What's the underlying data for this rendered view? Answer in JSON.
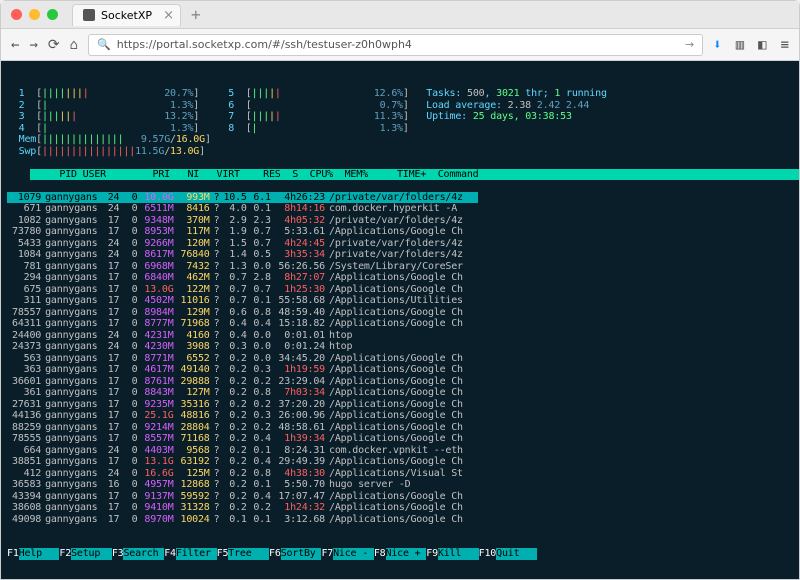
{
  "browser": {
    "tab_title": "SocketXP",
    "url": "https://portal.socketxp.com/#/ssh/testuser-z0h0wph4"
  },
  "colors": {
    "terminal_bg": "#0a1e2a",
    "header_bg": "#00d7af",
    "selected_bg": "#00afaf",
    "cyan": "#5fd7ff",
    "magenta": "#d75fff",
    "yellow": "#ffd75f",
    "red": "#ff5f5f",
    "green": "#5fff87"
  },
  "meters": {
    "cpus": [
      {
        "n": "1",
        "bar": "||||||||",
        "pct": "20.7%"
      },
      {
        "n": "2",
        "bar": "|",
        "pct": "1.3%"
      },
      {
        "n": "3",
        "bar": "||||||",
        "pct": "13.2%"
      },
      {
        "n": "4",
        "bar": "|",
        "pct": "1.3%"
      },
      {
        "n": "5",
        "bar": "|||||",
        "pct": "12.6%"
      },
      {
        "n": "6",
        "bar": "",
        "pct": "0.7%"
      },
      {
        "n": "7",
        "bar": "|||||",
        "pct": "11.3%"
      },
      {
        "n": "8",
        "bar": "|",
        "pct": "1.3%"
      }
    ],
    "mem_used": "9.57G",
    "mem_total": "16.0G",
    "swp_used": "11.5G",
    "swp_total": "13.0G",
    "tasks_total": "500",
    "tasks_thr": "3021",
    "tasks_running": "1",
    "load1": "2.38",
    "load5": "2.42",
    "load15": "2.44",
    "uptime": "25 days, 03:38:53"
  },
  "header": [
    "PID",
    "USER",
    "PRI",
    "NI",
    "VIRT",
    "RES",
    "S",
    "CPU%",
    "MEM%",
    "TIME+",
    "Command"
  ],
  "rows": [
    {
      "sel": true,
      "pid": "1079",
      "user": "gannygans",
      "pri": "24",
      "ni": "0",
      "virt": "10.0G",
      "res": "993M",
      "s": "?",
      "cpu": "10.5",
      "mem": "6.1",
      "time": "4h26:23",
      "t_red": false,
      "cmd": "/private/var/folders/4z"
    },
    {
      "pid": "671",
      "user": "gannygans",
      "pri": "24",
      "ni": "0",
      "virt": "6511M",
      "res": "8416",
      "s": "?",
      "cpu": "4.0",
      "mem": "0.1",
      "time": "8h14:16",
      "t_red": true,
      "cmd": "com.docker.hyperkit -A"
    },
    {
      "pid": "1082",
      "user": "gannygans",
      "pri": "17",
      "ni": "0",
      "virt": "9348M",
      "res": "370M",
      "s": "?",
      "cpu": "2.9",
      "mem": "2.3",
      "time": "4h05:32",
      "t_red": true,
      "cmd": "/private/var/folders/4z"
    },
    {
      "pid": "73780",
      "user": "gannygans",
      "pri": "17",
      "ni": "0",
      "virt": "8953M",
      "res": "117M",
      "s": "?",
      "cpu": "1.9",
      "mem": "0.7",
      "time": "5:33.61",
      "cmd": "/Applications/Google Ch"
    },
    {
      "pid": "5433",
      "user": "gannygans",
      "pri": "24",
      "ni": "0",
      "virt": "9266M",
      "res": "120M",
      "s": "?",
      "cpu": "1.5",
      "mem": "0.7",
      "time": "4h24:45",
      "t_red": true,
      "cmd": "/private/var/folders/4z"
    },
    {
      "pid": "1084",
      "user": "gannygans",
      "pri": "24",
      "ni": "0",
      "virt": "8617M",
      "res": "76840",
      "s": "?",
      "cpu": "1.4",
      "mem": "0.5",
      "time": "3h35:34",
      "t_red": true,
      "cmd": "/private/var/folders/4z"
    },
    {
      "pid": "781",
      "user": "gannygans",
      "pri": "17",
      "ni": "0",
      "virt": "6968M",
      "res": "7432",
      "s": "?",
      "cpu": "1.3",
      "mem": "0.0",
      "time": "56:26.56",
      "cmd": "/System/Library/CoreSer"
    },
    {
      "pid": "294",
      "user": "gannygans",
      "pri": "17",
      "ni": "0",
      "virt": "6840M",
      "res": "462M",
      "s": "?",
      "cpu": "0.7",
      "mem": "2.8",
      "time": "8h27:07",
      "t_red": true,
      "cmd": "/Applications/Google Ch"
    },
    {
      "pid": "675",
      "user": "gannygans",
      "pri": "17",
      "ni": "0",
      "virt": "13.0G",
      "v_red": true,
      "res": "122M",
      "s": "?",
      "cpu": "0.7",
      "mem": "0.7",
      "time": "1h25:30",
      "t_red": true,
      "cmd": "/Applications/Google Ch"
    },
    {
      "pid": "311",
      "user": "gannygans",
      "pri": "17",
      "ni": "0",
      "virt": "4502M",
      "res": "11016",
      "s": "?",
      "cpu": "0.7",
      "mem": "0.1",
      "time": "55:58.68",
      "cmd": "/Applications/Utilities"
    },
    {
      "pid": "78557",
      "user": "gannygans",
      "pri": "17",
      "ni": "0",
      "virt": "8984M",
      "res": "129M",
      "s": "?",
      "cpu": "0.6",
      "mem": "0.8",
      "time": "48:59.40",
      "cmd": "/Applications/Google Ch"
    },
    {
      "pid": "64311",
      "user": "gannygans",
      "pri": "17",
      "ni": "0",
      "virt": "8777M",
      "res": "71968",
      "s": "?",
      "cpu": "0.4",
      "mem": "0.4",
      "time": "15:18.82",
      "cmd": "/Applications/Google Ch"
    },
    {
      "pid": "24400",
      "user": "gannygans",
      "pri": "24",
      "ni": "0",
      "virt": "4231M",
      "res": "4160",
      "s": "?",
      "cpu": "0.4",
      "mem": "0.0",
      "time": "0:01.01",
      "cmd": "htop"
    },
    {
      "pid": "24373",
      "user": "gannygans",
      "pri": "24",
      "ni": "0",
      "virt": "4230M",
      "res": "3908",
      "s": "?",
      "cpu": "0.3",
      "mem": "0.0",
      "time": "0:01.24",
      "cmd": "htop"
    },
    {
      "pid": "563",
      "user": "gannygans",
      "pri": "17",
      "ni": "0",
      "virt": "8771M",
      "res": "6552",
      "s": "?",
      "cpu": "0.2",
      "mem": "0.0",
      "time": "34:45.20",
      "cmd": "/Applications/Google Ch"
    },
    {
      "pid": "363",
      "user": "gannygans",
      "pri": "17",
      "ni": "0",
      "virt": "4617M",
      "res": "49140",
      "s": "?",
      "cpu": "0.2",
      "mem": "0.3",
      "time": "1h19:59",
      "t_red": true,
      "cmd": "/Applications/Google Ch"
    },
    {
      "pid": "36601",
      "user": "gannygans",
      "pri": "17",
      "ni": "0",
      "virt": "8761M",
      "res": "29888",
      "s": "?",
      "cpu": "0.2",
      "mem": "0.2",
      "time": "23:29.04",
      "cmd": "/Applications/Google Ch"
    },
    {
      "pid": "361",
      "user": "gannygans",
      "pri": "17",
      "ni": "0",
      "virt": "8843M",
      "res": "127M",
      "s": "?",
      "cpu": "0.2",
      "mem": "0.8",
      "time": "7h03:34",
      "t_red": true,
      "cmd": "/Applications/Google Ch"
    },
    {
      "pid": "27631",
      "user": "gannygans",
      "pri": "17",
      "ni": "0",
      "virt": "9235M",
      "res": "35316",
      "s": "?",
      "cpu": "0.2",
      "mem": "0.2",
      "time": "37:20.20",
      "cmd": "/Applications/Google Ch"
    },
    {
      "pid": "44136",
      "user": "gannygans",
      "pri": "17",
      "ni": "0",
      "virt": "25.1G",
      "v_red": true,
      "res": "48816",
      "s": "?",
      "cpu": "0.2",
      "mem": "0.3",
      "time": "26:00.96",
      "cmd": "/Applications/Google Ch"
    },
    {
      "pid": "88259",
      "user": "gannygans",
      "pri": "17",
      "ni": "0",
      "virt": "9214M",
      "res": "28804",
      "s": "?",
      "cpu": "0.2",
      "mem": "0.2",
      "time": "48:58.61",
      "cmd": "/Applications/Google Ch"
    },
    {
      "pid": "78555",
      "user": "gannygans",
      "pri": "17",
      "ni": "0",
      "virt": "8557M",
      "res": "71168",
      "s": "?",
      "cpu": "0.2",
      "mem": "0.4",
      "time": "1h39:34",
      "t_red": true,
      "cmd": "/Applications/Google Ch"
    },
    {
      "pid": "664",
      "user": "gannygans",
      "pri": "24",
      "ni": "0",
      "virt": "4403M",
      "res": "9568",
      "s": "?",
      "cpu": "0.2",
      "mem": "0.1",
      "time": "8:24.31",
      "cmd": "com.docker.vpnkit --eth"
    },
    {
      "pid": "38851",
      "user": "gannygans",
      "pri": "17",
      "ni": "0",
      "virt": "13.1G",
      "v_red": true,
      "res": "63192",
      "s": "?",
      "cpu": "0.2",
      "mem": "0.4",
      "time": "29:49.39",
      "cmd": "/Applications/Google Ch"
    },
    {
      "pid": "412",
      "user": "gannygans",
      "pri": "24",
      "ni": "0",
      "virt": "16.6G",
      "v_red": true,
      "res": "125M",
      "s": "?",
      "cpu": "0.2",
      "mem": "0.8",
      "time": "4h38:30",
      "t_red": true,
      "cmd": "/Applications/Visual St"
    },
    {
      "pid": "36583",
      "user": "gannygans",
      "pri": "16",
      "ni": "0",
      "virt": "4957M",
      "res": "12868",
      "s": "?",
      "cpu": "0.2",
      "mem": "0.1",
      "time": "5:50.70",
      "cmd": "hugo server -D"
    },
    {
      "pid": "43394",
      "user": "gannygans",
      "pri": "17",
      "ni": "0",
      "virt": "9137M",
      "res": "59592",
      "s": "?",
      "cpu": "0.2",
      "mem": "0.4",
      "time": "17:07.47",
      "cmd": "/Applications/Google Ch"
    },
    {
      "pid": "38608",
      "user": "gannygans",
      "pri": "17",
      "ni": "0",
      "virt": "9410M",
      "res": "31328",
      "s": "?",
      "cpu": "0.2",
      "mem": "0.2",
      "time": "1h24:32",
      "t_red": true,
      "cmd": "/Applications/Google Ch"
    },
    {
      "pid": "49098",
      "user": "gannygans",
      "pri": "17",
      "ni": "0",
      "virt": "8970M",
      "res": "10024",
      "s": "?",
      "cpu": "0.1",
      "mem": "0.1",
      "time": "3:12.68",
      "cmd": "/Applications/Google Ch"
    }
  ],
  "fkeys": [
    {
      "k": "F1",
      "l": "Help"
    },
    {
      "k": "F2",
      "l": "Setup"
    },
    {
      "k": "F3",
      "l": "Search"
    },
    {
      "k": "F4",
      "l": "Filter"
    },
    {
      "k": "F5",
      "l": "Tree"
    },
    {
      "k": "F6",
      "l": "SortBy"
    },
    {
      "k": "F7",
      "l": "Nice -"
    },
    {
      "k": "F8",
      "l": "Nice +"
    },
    {
      "k": "F9",
      "l": "Kill"
    },
    {
      "k": "F10",
      "l": "Quit"
    }
  ]
}
